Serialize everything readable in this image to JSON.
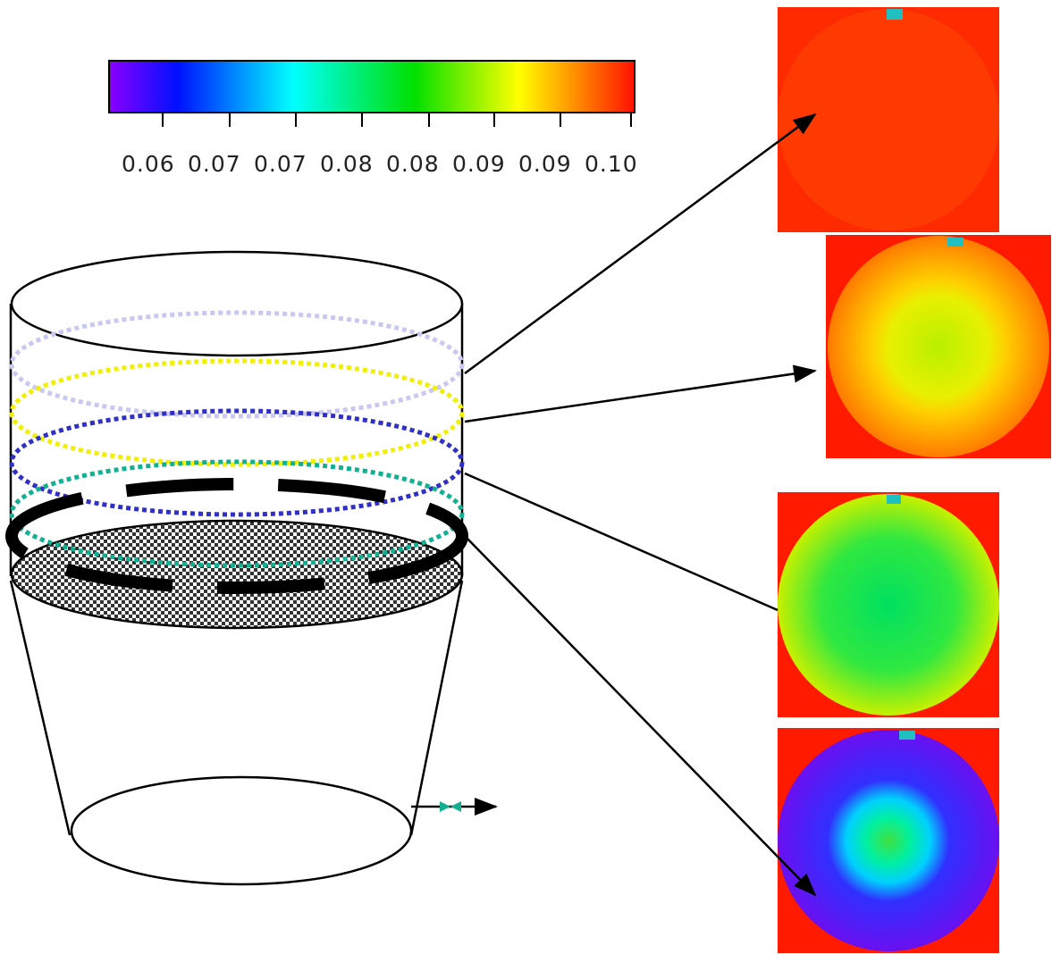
{
  "colorbar": {
    "ticks": [
      "0.06",
      "0.07",
      "0.07",
      "0.08",
      "0.08",
      "0.09",
      "0.09",
      "0.10"
    ]
  }
}
